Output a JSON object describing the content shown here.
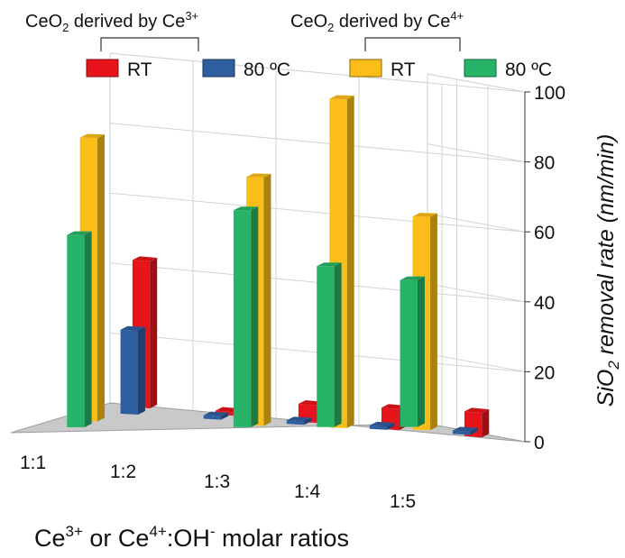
{
  "chart_data": {
    "type": "bar",
    "categories": [
      "1:1",
      "1:2",
      "1:3",
      "1:4",
      "1:5"
    ],
    "xlabel": {
      "p1": "Ce",
      "s1": "3+",
      "p2": " or Ce",
      "s2": "4+",
      "p3": ":OH",
      "s3": "-",
      "p4": " molar ratios"
    },
    "ylabel": {
      "p1": "SiO",
      "sub": "2",
      "p2": " removal rate (nm/min)"
    },
    "ylim": [
      0,
      100
    ],
    "yticks": [
      "0",
      "20",
      "40",
      "60",
      "80",
      "100"
    ],
    "groups": [
      {
        "prefix": "CeO",
        "sub": "2",
        "mid": " derived by Ce",
        "sup": "3+"
      },
      {
        "prefix": "CeO",
        "sub": "2",
        "mid": " derived by Ce",
        "sup": "4+"
      }
    ],
    "series": [
      {
        "name": "RT",
        "group": 0,
        "color": "#e8141c",
        "values": [
          42,
          1,
          5,
          6,
          7
        ]
      },
      {
        "name": "80 ºC",
        "group": 0,
        "color": "#2f5fa0",
        "values": [
          24,
          1,
          1,
          1,
          1
        ]
      },
      {
        "name": "RT",
        "group": 1,
        "color": "#fbbd18",
        "values": [
          81,
          0,
          71,
          94,
          61
        ]
      },
      {
        "name": "80 ºC",
        "group": 1,
        "color": "#27b469",
        "values": [
          55,
          0,
          62,
          46,
          42
        ]
      }
    ],
    "grid": true,
    "legend_position": "top"
  }
}
